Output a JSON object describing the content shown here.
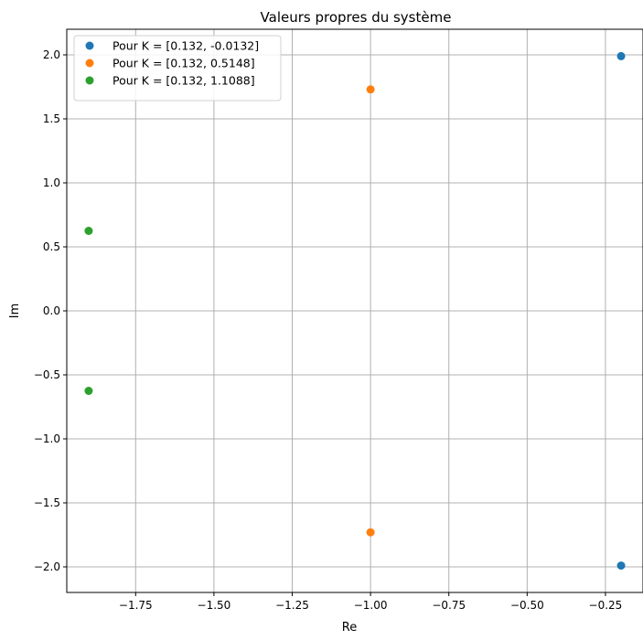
{
  "chart_data": {
    "type": "scatter",
    "title": "Valeurs propres du système",
    "xlabel": "Re",
    "ylabel": "Im",
    "xlim": [
      -1.9699,
      -0.1301
    ],
    "ylim": [
      -2.2,
      2.2
    ],
    "xticks": [
      -1.75,
      -1.5,
      -1.25,
      -1.0,
      -0.75,
      -0.5,
      -0.25
    ],
    "xtick_labels": [
      "−1.75",
      "−1.50",
      "−1.25",
      "−1.00",
      "−0.75",
      "−0.50",
      "−0.25"
    ],
    "yticks": [
      -2.0,
      -1.5,
      -1.0,
      -0.5,
      0.0,
      0.5,
      1.0,
      1.5,
      2.0
    ],
    "ytick_labels": [
      "−2.0",
      "−1.5",
      "−1.0",
      "−0.5",
      "0.0",
      "0.5",
      "1.0",
      "1.5",
      "2.0"
    ],
    "grid": true,
    "legend_position": "top-left",
    "series": [
      {
        "name": "Pour K = [0.132, -0.0132]",
        "color": "#1f77b4",
        "points": [
          {
            "x": -0.2,
            "y": 1.99
          },
          {
            "x": -0.2,
            "y": -1.99
          }
        ]
      },
      {
        "name": "Pour K = [0.132, 0.5148]",
        "color": "#ff7f0e",
        "points": [
          {
            "x": -1.0,
            "y": 1.73
          },
          {
            "x": -1.0,
            "y": -1.73
          }
        ]
      },
      {
        "name": "Pour K = [0.132, 1.1088]",
        "color": "#2ca02c",
        "points": [
          {
            "x": -1.9,
            "y": 0.625
          },
          {
            "x": -1.9,
            "y": -0.625
          }
        ]
      }
    ]
  }
}
